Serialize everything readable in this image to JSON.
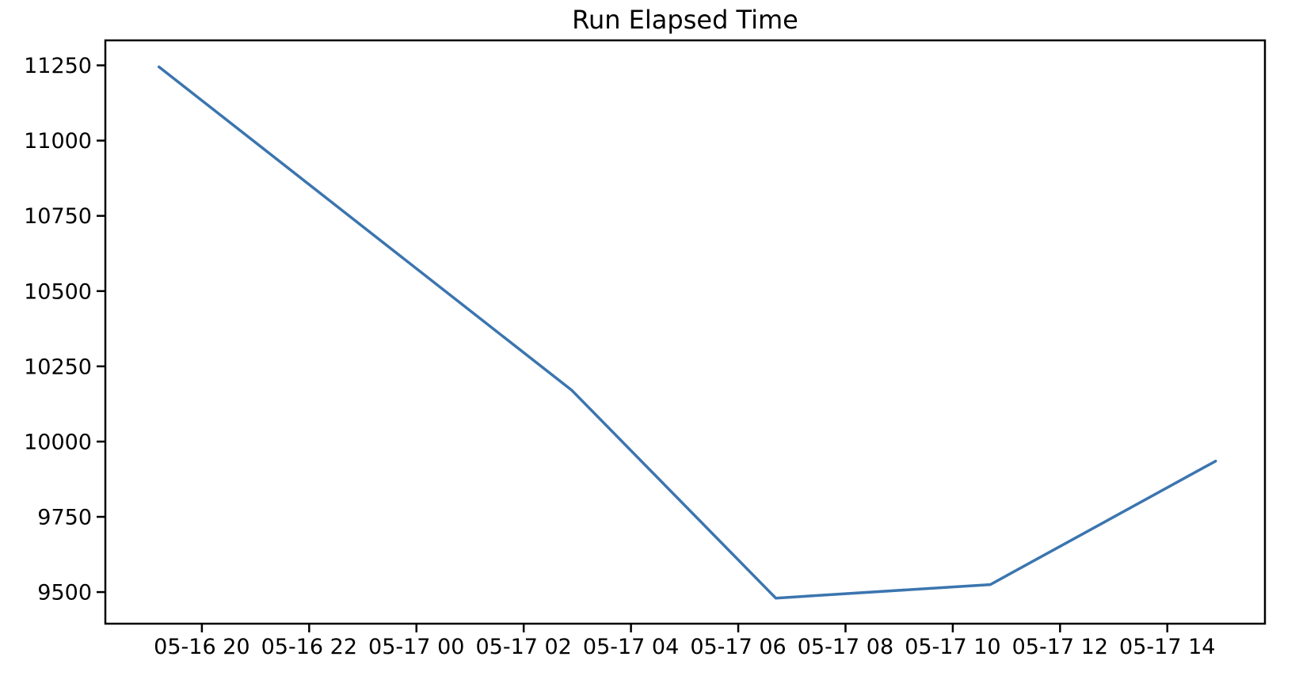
{
  "chart_data": {
    "type": "line",
    "title": "Run Elapsed Time",
    "xlabel": "",
    "ylabel": "",
    "grid": false,
    "legend": "none",
    "background_color": "#ffffff",
    "axis_color": "#000000",
    "line_color": "#3b75af",
    "x_axis": {
      "unit": "hours since 05-16 18:00",
      "range": [
        0.2,
        21.82
      ],
      "ticks": [
        {
          "t": 2,
          "label": "05-16 20"
        },
        {
          "t": 4,
          "label": "05-16 22"
        },
        {
          "t": 6,
          "label": "05-17 00"
        },
        {
          "t": 8,
          "label": "05-17 02"
        },
        {
          "t": 10,
          "label": "05-17 04"
        },
        {
          "t": 12,
          "label": "05-17 06"
        },
        {
          "t": 14,
          "label": "05-17 08"
        },
        {
          "t": 16,
          "label": "05-17 10"
        },
        {
          "t": 18,
          "label": "05-17 12"
        },
        {
          "t": 20,
          "label": "05-17 14"
        }
      ]
    },
    "y_axis": {
      "range": [
        9395,
        11333
      ],
      "ticks": [
        9500,
        9750,
        10000,
        10250,
        10500,
        10750,
        11000,
        11250
      ]
    },
    "series": [
      {
        "name": "run-elapsed-time",
        "x_hours": [
          1.2,
          8.9,
          12.7,
          16.7,
          20.9
        ],
        "x_time_est": [
          "05-16 19:10",
          "05-17 02:50",
          "05-17 06:40",
          "05-17 10:45",
          "05-17 14:50"
        ],
        "values": [
          11245,
          10170,
          9480,
          9525,
          9935
        ]
      }
    ]
  }
}
